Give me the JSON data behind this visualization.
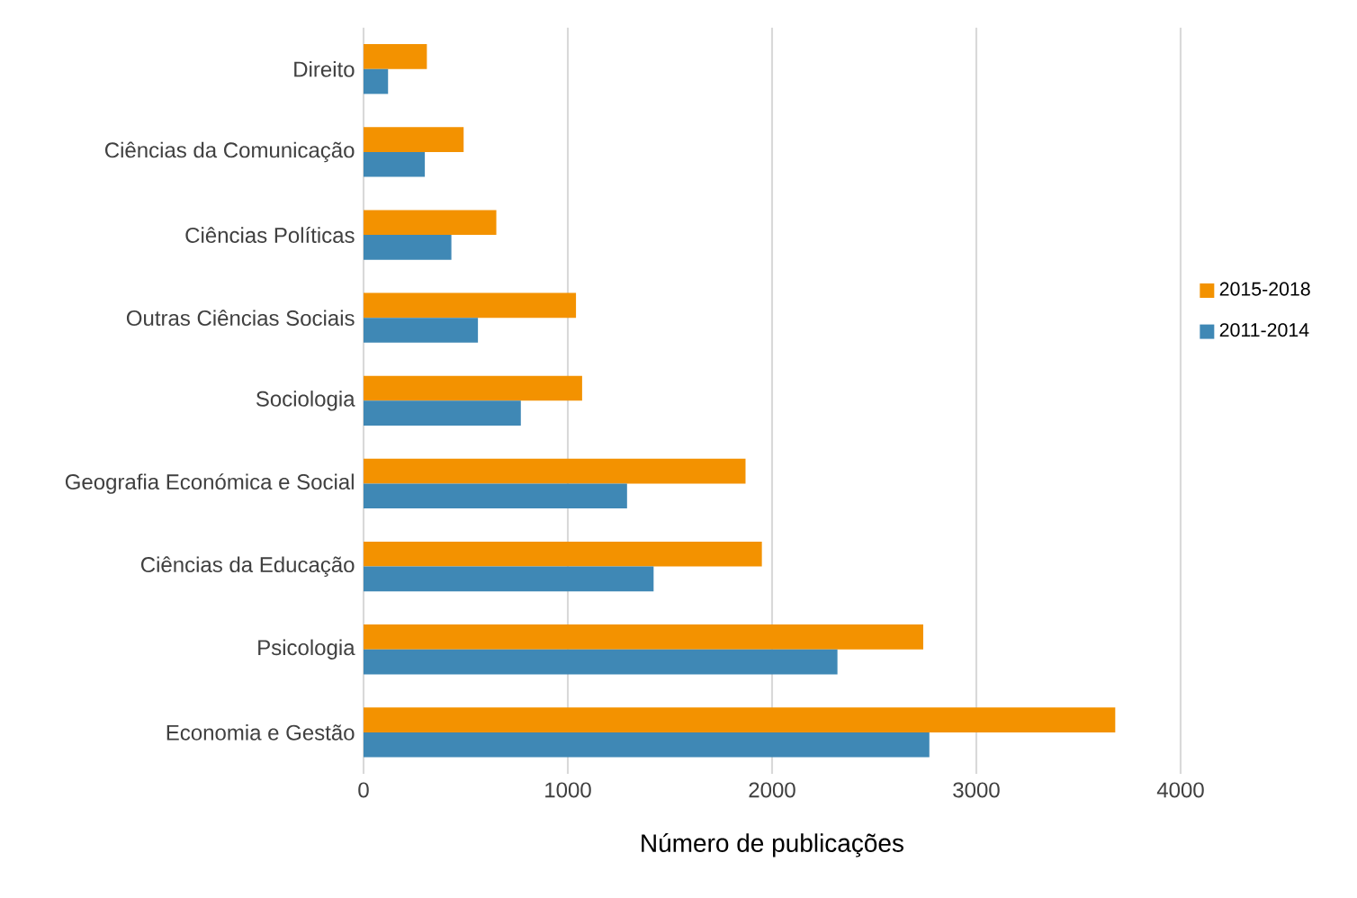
{
  "chart_data": {
    "type": "bar",
    "orientation": "horizontal",
    "xlabel": "Número de publicações",
    "categories": [
      "Direito",
      "Ciências da Comunicação",
      "Ciências Políticas",
      "Outras Ciências Sociais",
      "Sociologia",
      "Geografia Económica e Social",
      "Ciências da Educação",
      "Psicologia",
      "Economia e Gestão"
    ],
    "series": [
      {
        "name": "2015-2018",
        "color": "#f39200",
        "values": [
          310,
          490,
          650,
          1040,
          1070,
          1870,
          1950,
          2740,
          3680
        ]
      },
      {
        "name": "2011-2014",
        "color": "#3f88b5",
        "values": [
          120,
          300,
          430,
          560,
          770,
          1290,
          1420,
          2320,
          2770
        ]
      }
    ],
    "xlim": [
      0,
      4000
    ],
    "xticks": [
      0,
      1000,
      2000,
      3000,
      4000
    ],
    "grid": "x",
    "legend": "right"
  }
}
